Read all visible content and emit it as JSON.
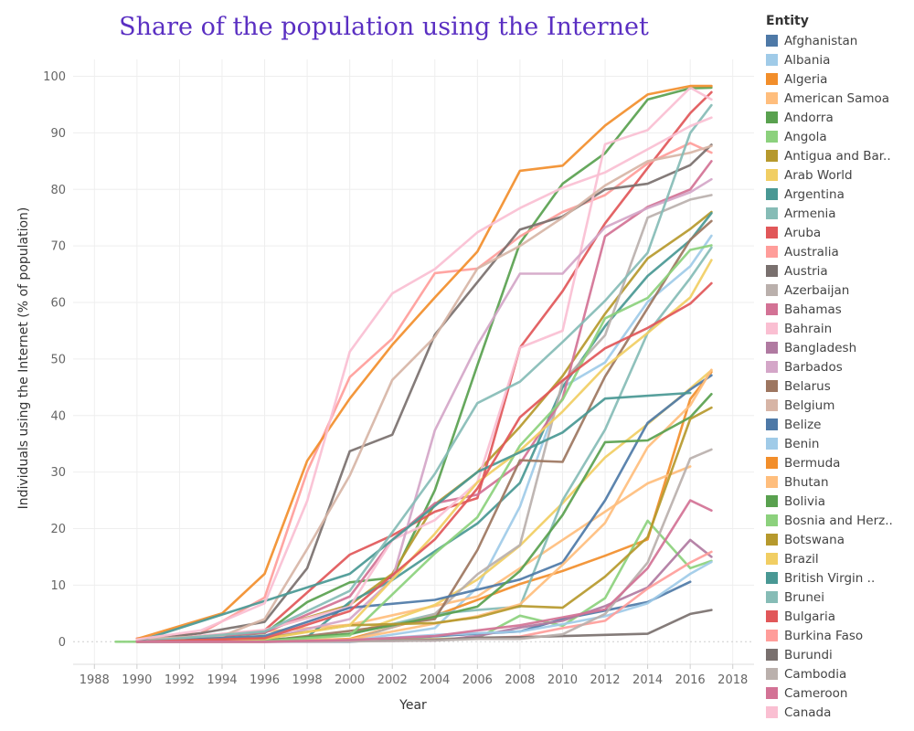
{
  "chart_data": {
    "type": "line",
    "title": "Share of the population using the Internet",
    "xlabel": "Year",
    "ylabel": "Individuals using the Internet (% of population)",
    "xlim": [
      1987,
      2019
    ],
    "ylim": [
      -4,
      103
    ],
    "x_ticks": [
      1988,
      1990,
      1992,
      1994,
      1996,
      1998,
      2000,
      2002,
      2004,
      2006,
      2008,
      2010,
      2012,
      2014,
      2016,
      2018
    ],
    "y_ticks": [
      0,
      10,
      20,
      30,
      40,
      50,
      60,
      70,
      80,
      90,
      100
    ],
    "grid": true,
    "legend_title": "Entity",
    "legend_position": "right",
    "series": [
      {
        "name": "Afghanistan",
        "color": "#4e79a7",
        "x": [
          1990,
          2000,
          2005,
          2008,
          2010,
          2012,
          2014,
          2016
        ],
        "y": [
          0,
          0,
          1.2,
          1.8,
          4,
          5.5,
          7,
          10.6
        ]
      },
      {
        "name": "Albania",
        "color": "#a0cbe8",
        "x": [
          1990,
          1996,
          2000,
          2004,
          2006,
          2008,
          2010,
          2012,
          2014,
          2016,
          2017
        ],
        "y": [
          0,
          0.1,
          0.1,
          2.4,
          9.6,
          23.9,
          45,
          49.4,
          60.1,
          66.4,
          71.8
        ]
      },
      {
        "name": "Algeria",
        "color": "#f28e2b",
        "x": [
          1990,
          1996,
          2000,
          2004,
          2006,
          2008,
          2010,
          2012,
          2014,
          2016,
          2017
        ],
        "y": [
          0,
          0,
          0.5,
          4.6,
          7.4,
          10.2,
          12.5,
          15.2,
          18.1,
          42.9,
          47.7
        ]
      },
      {
        "name": "American Samoa",
        "color": "#ffbe7d",
        "x": [
          1990,
          2000,
          2006,
          2010,
          2014,
          2016
        ],
        "y": [
          0,
          3,
          8,
          18,
          28,
          31
        ]
      },
      {
        "name": "Andorra",
        "color": "#59a14f",
        "x": [
          1990,
          1996,
          1998,
          2000,
          2002,
          2004,
          2006,
          2008,
          2010,
          2012,
          2014,
          2016,
          2017
        ],
        "y": [
          0,
          1.5,
          7,
          10.5,
          11.3,
          26.8,
          48.9,
          70.5,
          81,
          86.4,
          95.9,
          97.9,
          98
        ]
      },
      {
        "name": "Angola",
        "color": "#8cd17d",
        "x": [
          1989,
          1990,
          1996,
          2000,
          2004,
          2006,
          2008,
          2010,
          2012,
          2014,
          2016,
          2017
        ],
        "y": [
          0,
          0,
          0.01,
          0.1,
          0.5,
          0.6,
          4.6,
          2.8,
          7.7,
          21.4,
          13,
          14.3
        ]
      },
      {
        "name": "Antigua and Barbuda",
        "color": "#b6992d",
        "x": [
          1990,
          1996,
          2000,
          2002,
          2004,
          2006,
          2008,
          2010,
          2012,
          2014,
          2016,
          2017
        ],
        "y": [
          0,
          2,
          6.5,
          12,
          24.3,
          30,
          38,
          47,
          58,
          67.8,
          73,
          76
        ]
      },
      {
        "name": "Arab World",
        "color": "#f1ce63",
        "x": [
          1990,
          1996,
          2000,
          2004,
          2006,
          2008,
          2010,
          2012,
          2014,
          2016,
          2017
        ],
        "y": [
          0,
          0.1,
          1.2,
          6.5,
          11,
          17,
          24.5,
          32.6,
          38.5,
          44.8,
          48
        ]
      },
      {
        "name": "Argentina",
        "color": "#499894",
        "x": [
          1990,
          1996,
          1998,
          2000,
          2002,
          2004,
          2006,
          2008,
          2010,
          2012,
          2014,
          2016,
          2017
        ],
        "y": [
          0,
          0.3,
          0.8,
          7,
          10.9,
          16,
          20.9,
          28.1,
          45,
          55.8,
          64.7,
          71,
          75.8
        ]
      },
      {
        "name": "Armenia",
        "color": "#86bcb6",
        "x": [
          1990,
          1996,
          2000,
          2004,
          2006,
          2008,
          2010,
          2012,
          2014,
          2016,
          2017
        ],
        "y": [
          0,
          0.1,
          1.3,
          4.9,
          5.6,
          6.2,
          25,
          37.5,
          54.6,
          64.3,
          69.7
        ]
      },
      {
        "name": "Aruba",
        "color": "#e15759",
        "x": [
          1990,
          1996,
          2000,
          2002,
          2004,
          2006,
          2008,
          2010,
          2012,
          2014,
          2016,
          2017
        ],
        "y": [
          0,
          2,
          15.4,
          18.8,
          23,
          25.4,
          52,
          62,
          74,
          83.8,
          93.5,
          97.2
        ]
      },
      {
        "name": "Australia",
        "color": "#ff9d9a",
        "x": [
          1990,
          1993,
          1996,
          1998,
          2000,
          2002,
          2004,
          2006,
          2008,
          2010,
          2012,
          2014,
          2016,
          2017
        ],
        "y": [
          0.6,
          1.5,
          7.8,
          30.1,
          46.8,
          53.6,
          65.2,
          66,
          71.7,
          76,
          79,
          84.6,
          88.2,
          86.5
        ]
      },
      {
        "name": "Austria",
        "color": "#79706e",
        "x": [
          1990,
          1993,
          1996,
          1998,
          2000,
          2002,
          2004,
          2006,
          2008,
          2010,
          2012,
          2014,
          2016,
          2017
        ],
        "y": [
          0.1,
          1.5,
          3.5,
          13,
          33.7,
          36.6,
          54.3,
          63.6,
          72.9,
          75.2,
          80,
          81,
          84.3,
          87.9
        ]
      },
      {
        "name": "Azerbaijan",
        "color": "#bab0ac",
        "x": [
          1990,
          1996,
          2000,
          2004,
          2006,
          2008,
          2010,
          2012,
          2014,
          2016,
          2017
        ],
        "y": [
          0,
          0.1,
          0.2,
          4.9,
          11.9,
          17.1,
          46,
          54.2,
          75,
          78.2,
          79
        ]
      },
      {
        "name": "Bahamas",
        "color": "#d37295",
        "x": [
          1990,
          1996,
          2000,
          2002,
          2004,
          2006,
          2008,
          2010,
          2012,
          2014,
          2016,
          2017
        ],
        "y": [
          0,
          1.6,
          8,
          18,
          24.5,
          26,
          31.5,
          43,
          71.7,
          76.9,
          80,
          85
        ]
      },
      {
        "name": "Bahrain",
        "color": "#fabfd2",
        "x": [
          1990,
          1996,
          2000,
          2002,
          2004,
          2006,
          2008,
          2010,
          2012,
          2014,
          2016,
          2017
        ],
        "y": [
          0,
          2.1,
          6.2,
          18,
          21.5,
          28.2,
          52,
          55,
          88,
          90.5,
          98,
          95.9
        ]
      },
      {
        "name": "Bangladesh",
        "color": "#b07aa1",
        "x": [
          1990,
          1996,
          2000,
          2004,
          2006,
          2008,
          2010,
          2012,
          2014,
          2016,
          2017
        ],
        "y": [
          0,
          0,
          0.07,
          0.2,
          1,
          2.5,
          3.7,
          6.3,
          9.6,
          18,
          15
        ]
      },
      {
        "name": "Barbados",
        "color": "#d4a6c8",
        "x": [
          1990,
          1996,
          2000,
          2002,
          2004,
          2006,
          2008,
          2010,
          2012,
          2014,
          2016,
          2017
        ],
        "y": [
          0,
          0.5,
          4,
          11,
          37.4,
          52.5,
          65.1,
          65.1,
          73.3,
          76.7,
          79.5,
          81.8
        ]
      },
      {
        "name": "Belarus",
        "color": "#9d7660",
        "x": [
          1990,
          1996,
          2000,
          2004,
          2006,
          2008,
          2010,
          2012,
          2014,
          2016,
          2017
        ],
        "y": [
          0,
          0.1,
          1.9,
          4,
          16.2,
          32.1,
          31.8,
          46.9,
          59,
          71.1,
          74.4
        ]
      },
      {
        "name": "Belgium",
        "color": "#d7b5a6",
        "x": [
          1990,
          1994,
          1996,
          1998,
          2000,
          2002,
          2004,
          2006,
          2008,
          2010,
          2012,
          2014,
          2016,
          2017
        ],
        "y": [
          0.5,
          1,
          4,
          16.4,
          29.4,
          46.3,
          53.9,
          66,
          70,
          75,
          80.7,
          85,
          86.5,
          87.7
        ]
      },
      {
        "name": "Belize",
        "color": "#4e79a7",
        "x": [
          1990,
          1996,
          2000,
          2004,
          2006,
          2008,
          2010,
          2012,
          2014,
          2016,
          2017
        ],
        "y": [
          0,
          1,
          6,
          7.4,
          9.2,
          11,
          14,
          25,
          38.7,
          44.6,
          47.1
        ]
      },
      {
        "name": "Benin",
        "color": "#a0cbe8",
        "x": [
          1990,
          1996,
          2000,
          2004,
          2006,
          2008,
          2010,
          2012,
          2014,
          2016,
          2017
        ],
        "y": [
          0,
          0,
          0.2,
          1.2,
          1.5,
          1.8,
          3.1,
          4.5,
          6.8,
          12,
          14.1
        ]
      },
      {
        "name": "Bermuda",
        "color": "#f28e2b",
        "x": [
          1990,
          1994,
          1996,
          1998,
          2000,
          2002,
          2004,
          2006,
          2008,
          2010,
          2012,
          2014,
          2016,
          2017
        ],
        "y": [
          0.5,
          5,
          12,
          32,
          43,
          52.5,
          60.9,
          69,
          83.3,
          84.2,
          91.3,
          96.8,
          98.3,
          98.3
        ]
      },
      {
        "name": "Bhutan",
        "color": "#ffbe7d",
        "x": [
          1990,
          1998,
          2000,
          2004,
          2006,
          2008,
          2010,
          2012,
          2014,
          2016,
          2017
        ],
        "y": [
          0,
          0.3,
          0.4,
          3.2,
          4.5,
          6.6,
          13.6,
          21,
          34.4,
          41.8,
          48.1
        ]
      },
      {
        "name": "Bolivia",
        "color": "#59a14f",
        "x": [
          1990,
          1996,
          2000,
          2004,
          2006,
          2008,
          2010,
          2012,
          2014,
          2016,
          2017
        ],
        "y": [
          0,
          0.2,
          1.4,
          4.4,
          6.2,
          12.5,
          22.4,
          35.3,
          35.6,
          39.7,
          43.8
        ]
      },
      {
        "name": "Bosnia and Herzegovina",
        "color": "#8cd17d",
        "x": [
          1990,
          1996,
          2000,
          2004,
          2006,
          2008,
          2010,
          2012,
          2014,
          2016,
          2017
        ],
        "y": [
          0,
          0.1,
          1.1,
          15.6,
          22,
          34.7,
          42.8,
          57.2,
          60.8,
          69.3,
          70.1
        ]
      },
      {
        "name": "Botswana",
        "color": "#b6992d",
        "x": [
          1990,
          1996,
          2000,
          2004,
          2006,
          2008,
          2010,
          2012,
          2014,
          2016,
          2017
        ],
        "y": [
          0,
          0.6,
          2.9,
          3.3,
          4.3,
          6.3,
          6,
          11.5,
          18.5,
          39.4,
          41.4
        ]
      },
      {
        "name": "Brazil",
        "color": "#f1ce63",
        "x": [
          1990,
          1996,
          2000,
          2004,
          2006,
          2008,
          2010,
          2012,
          2014,
          2016,
          2017
        ],
        "y": [
          0,
          0.5,
          2.9,
          19.1,
          28.2,
          33.8,
          40.7,
          48.6,
          54.6,
          60.9,
          67.5
        ]
      },
      {
        "name": "British Virgin Islands",
        "color": "#499894",
        "x": [
          1990,
          2000,
          2006,
          2010,
          2012,
          2016
        ],
        "y": [
          0,
          12,
          30,
          37,
          43,
          44
        ]
      },
      {
        "name": "Brunei",
        "color": "#86bcb6",
        "x": [
          1990,
          1996,
          2000,
          2004,
          2006,
          2008,
          2010,
          2012,
          2014,
          2016,
          2017
        ],
        "y": [
          0,
          1.8,
          9,
          29.7,
          42.2,
          46,
          53,
          60.3,
          68.8,
          90,
          94.9
        ]
      },
      {
        "name": "Bulgaria",
        "color": "#e15759",
        "x": [
          1990,
          1996,
          2000,
          2004,
          2006,
          2008,
          2010,
          2012,
          2014,
          2016,
          2017
        ],
        "y": [
          0,
          0.6,
          5.4,
          18.1,
          27.1,
          39.7,
          46.2,
          51.9,
          55.5,
          59.8,
          63.4
        ]
      },
      {
        "name": "Burkina Faso",
        "color": "#ff9d9a",
        "x": [
          1990,
          1996,
          2000,
          2004,
          2006,
          2008,
          2010,
          2012,
          2014,
          2016,
          2017
        ],
        "y": [
          0,
          0,
          0.1,
          0.4,
          0.6,
          0.9,
          2.4,
          3.7,
          9.4,
          14,
          15.9
        ]
      },
      {
        "name": "Burundi",
        "color": "#79706e",
        "x": [
          1990,
          1996,
          2000,
          2004,
          2006,
          2008,
          2010,
          2012,
          2014,
          2016,
          2017
        ],
        "y": [
          0,
          0,
          0.1,
          0.3,
          0.7,
          0.8,
          1,
          1.2,
          1.4,
          4.9,
          5.6
        ]
      },
      {
        "name": "Cambodia",
        "color": "#bab0ac",
        "x": [
          1990,
          1996,
          2000,
          2004,
          2006,
          2008,
          2010,
          2012,
          2014,
          2016,
          2017
        ],
        "y": [
          0,
          0,
          0.05,
          0.2,
          0.5,
          0.5,
          1.3,
          4.9,
          14,
          32.4,
          34
        ]
      },
      {
        "name": "Cameroon",
        "color": "#d37295",
        "x": [
          1990,
          1996,
          2000,
          2004,
          2006,
          2008,
          2010,
          2012,
          2014,
          2016,
          2017
        ],
        "y": [
          0,
          0,
          0.3,
          1,
          2,
          2.9,
          4.3,
          5.7,
          13,
          25,
          23.2
        ]
      },
      {
        "name": "Canada",
        "color": "#fabfd2",
        "x": [
          1990,
          1993,
          1996,
          1998,
          2000,
          2002,
          2004,
          2006,
          2008,
          2010,
          2012,
          2014,
          2016,
          2017
        ],
        "y": [
          0.4,
          2,
          6.8,
          24.9,
          51.3,
          61.6,
          65.9,
          72.4,
          76.7,
          80.3,
          83,
          87.1,
          91.2,
          92.7
        ]
      }
    ]
  }
}
